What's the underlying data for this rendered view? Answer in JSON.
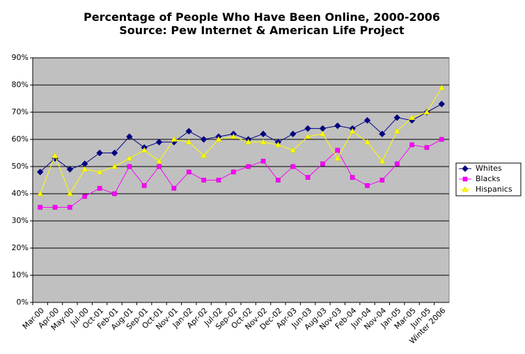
{
  "chart_data": {
    "type": "line",
    "title": "Percentage of People Who Have Been Online, 2000-2006",
    "subtitle": "Source: Pew Internet & American Life Project",
    "categories": [
      "Mar-00",
      "Apr-00",
      "May-00",
      "Jul-00",
      "Oct-01",
      "Feb-01",
      "Aug-01",
      "Sep-01",
      "Oct-01",
      "Nov-01",
      "Jan-02",
      "Apr-02",
      "Jul-02",
      "Sep-02",
      "Oct-02",
      "Nov-02",
      "Dec-02",
      "Apr-03",
      "Jun-03",
      "Aug-03",
      "Nov-03",
      "Feb-04",
      "Jun-04",
      "Nov-04",
      "Jan-05",
      "Mar-05",
      "Jun-05",
      "Winter 2006"
    ],
    "series": [
      {
        "name": "Whites",
        "color": "#000080",
        "marker": "diamond",
        "values": [
          48,
          53,
          49,
          51,
          55,
          55,
          61,
          57,
          59,
          59,
          63,
          60,
          61,
          62,
          60,
          62,
          59,
          62,
          64,
          64,
          65,
          64,
          67,
          62,
          68,
          67,
          70,
          73
        ]
      },
      {
        "name": "Blacks",
        "color": "#ff00ff",
        "marker": "square",
        "values": [
          35,
          35,
          35,
          39,
          42,
          40,
          50,
          43,
          50,
          42,
          48,
          45,
          45,
          48,
          50,
          52,
          45,
          50,
          46,
          51,
          56,
          46,
          43,
          45,
          51,
          58,
          57,
          60
        ]
      },
      {
        "name": "Hispanics",
        "color": "#ffff00",
        "marker": "triangle",
        "values": [
          40,
          54,
          40,
          49,
          48,
          50,
          53,
          56,
          52,
          60,
          59,
          54,
          60,
          61,
          59,
          59,
          58,
          56,
          61,
          62,
          53,
          63,
          59,
          52,
          63,
          68,
          70,
          79
        ]
      }
    ],
    "ylim": [
      0,
      90
    ],
    "yticks": [
      {
        "value": 0,
        "label": "0%"
      },
      {
        "value": 10,
        "label": "10%"
      },
      {
        "value": 20,
        "label": "20%"
      },
      {
        "value": 30,
        "label": "30%"
      },
      {
        "value": 40,
        "label": "40%"
      },
      {
        "value": 50,
        "label": "50%"
      },
      {
        "value": 60,
        "label": "60%"
      },
      {
        "value": 70,
        "label": "70%"
      },
      {
        "value": 80,
        "label": "80%"
      },
      {
        "value": 90,
        "label": "90%"
      }
    ],
    "grid": true,
    "legend": "right",
    "plot_background": "#c0c0c0"
  }
}
